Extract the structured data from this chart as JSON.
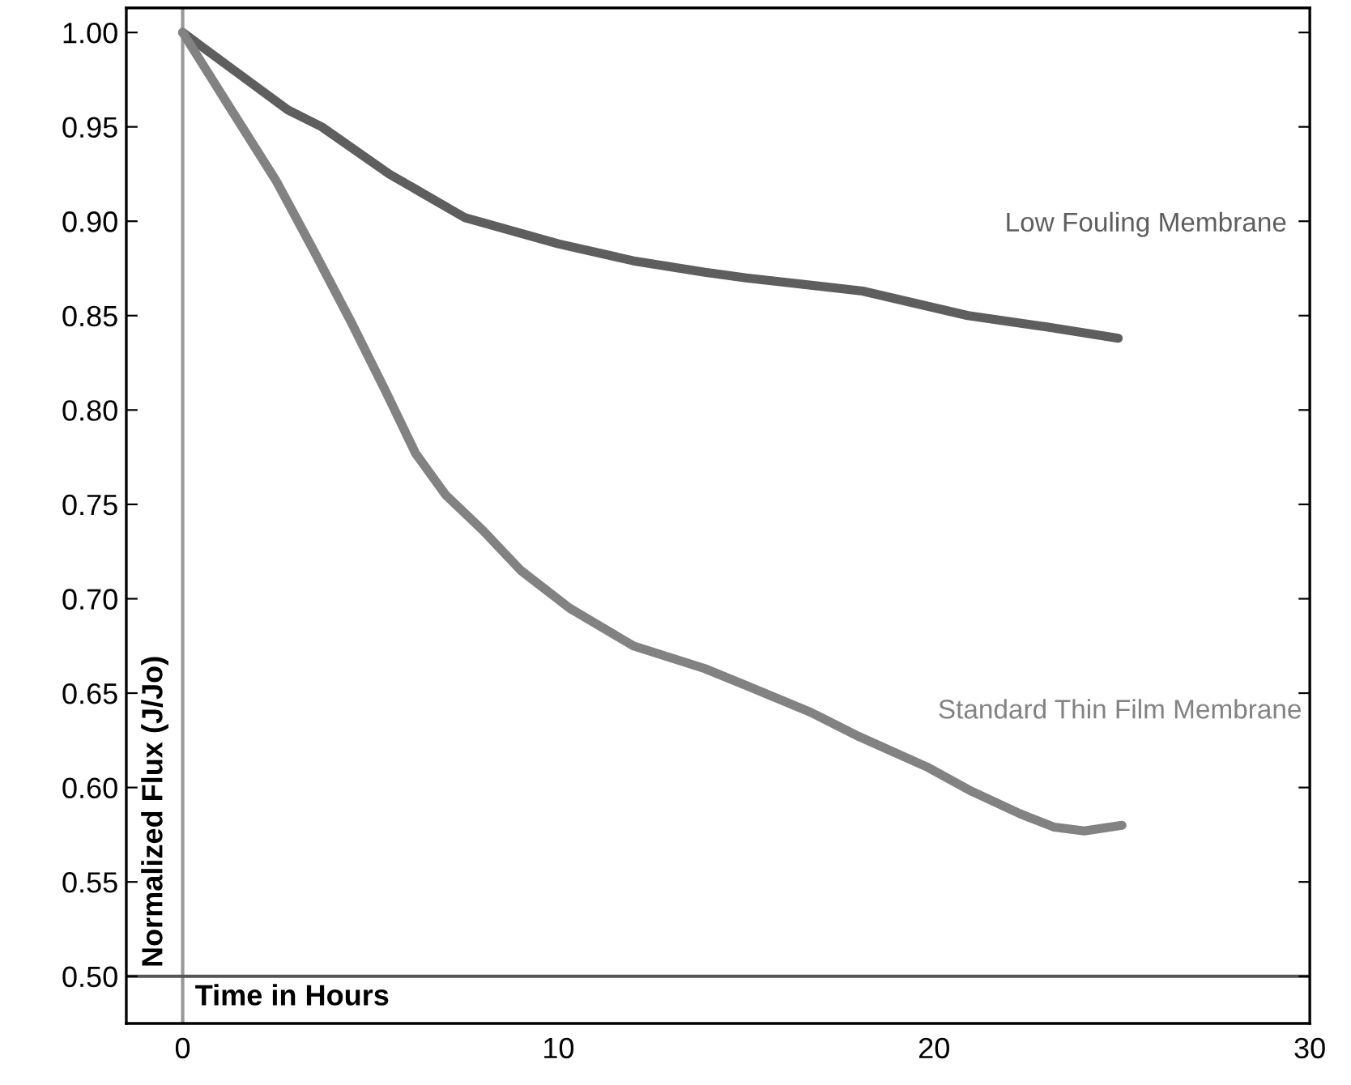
{
  "chart_data": {
    "type": "line",
    "xlabel": "Time in Hours",
    "ylabel": "Normalized Flux (J/Jo)",
    "series": [
      {
        "name": "Low Fouling Membrane",
        "color": "#5e5e5e",
        "x": [
          0,
          1.5,
          2.8,
          3.7,
          5.5,
          7.5,
          10,
          12,
          13.9,
          15,
          18.1,
          20.9,
          23,
          24.9
        ],
        "values": [
          1.0,
          0.978,
          0.959,
          0.95,
          0.925,
          0.902,
          0.888,
          0.879,
          0.873,
          0.87,
          0.863,
          0.85,
          0.844,
          0.838
        ]
      },
      {
        "name": "Standard Thin Film Membrane",
        "color": "#828282",
        "x": [
          0,
          1.2,
          2.5,
          3.5,
          4.5,
          5.4,
          6.2,
          7.0,
          8.0,
          9.0,
          10.3,
          12.0,
          13.9,
          15.0,
          16.7,
          18.0,
          19.8,
          21.0,
          22.3,
          23.2,
          24.0,
          25.0
        ],
        "values": [
          1.0,
          0.962,
          0.921,
          0.884,
          0.846,
          0.81,
          0.777,
          0.755,
          0.736,
          0.715,
          0.695,
          0.675,
          0.663,
          0.654,
          0.64,
          0.627,
          0.611,
          0.598,
          0.586,
          0.579,
          0.577,
          0.58
        ]
      }
    ],
    "xlim": [
      -1.5,
      30
    ],
    "xticks": [
      0,
      10,
      20,
      30
    ],
    "ylim": [
      0.475,
      1.013
    ],
    "yticks": [
      {
        "value": 1.0,
        "label": "1.00"
      },
      {
        "value": 0.95,
        "label": "0.95"
      },
      {
        "value": 0.9,
        "label": "0.90"
      },
      {
        "value": 0.85,
        "label": "0.85"
      },
      {
        "value": 0.8,
        "label": "0.80"
      },
      {
        "value": 0.75,
        "label": "0.75"
      },
      {
        "value": 0.7,
        "label": "0.70"
      },
      {
        "value": 0.65,
        "label": "0.65"
      },
      {
        "value": 0.6,
        "label": "0.60"
      },
      {
        "value": 0.55,
        "label": "0.55"
      },
      {
        "value": 0.5,
        "label": "0.50"
      }
    ],
    "ref_lines": [
      {
        "axis": "x",
        "value": 0,
        "color": "#999999"
      },
      {
        "axis": "y",
        "value": 0.5,
        "color": "#555555"
      }
    ],
    "grid": false,
    "legend": false,
    "marker": "none",
    "line_style": "solid"
  }
}
